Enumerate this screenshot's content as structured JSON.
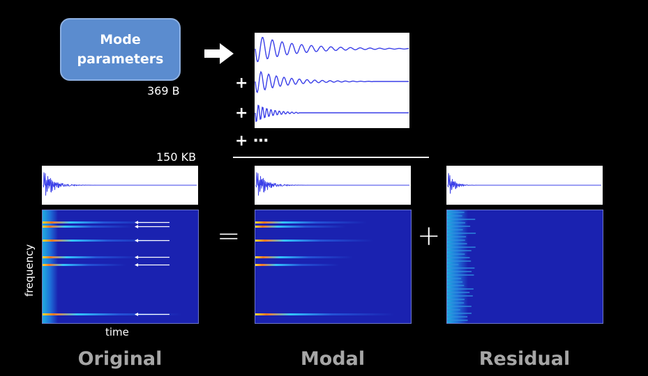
{
  "mode_box": {
    "line1": "Mode",
    "line2": "parameters"
  },
  "mode_size": "369 B",
  "audio_size": "150 KB",
  "plus_symbol": "+",
  "ellipsis": "⋯",
  "equals_symbol": "=",
  "axis": {
    "y": "frequency",
    "x": "time"
  },
  "captions": {
    "original": "Original",
    "modal": "Modal",
    "residual": "Residual"
  },
  "icons": {
    "arrow": "arrow-right-icon"
  },
  "colors": {
    "box": "#5b8ccf",
    "wave": "#3a3fe8",
    "spec_bg": "#1a22b0",
    "caption": "#a6a6a6"
  }
}
